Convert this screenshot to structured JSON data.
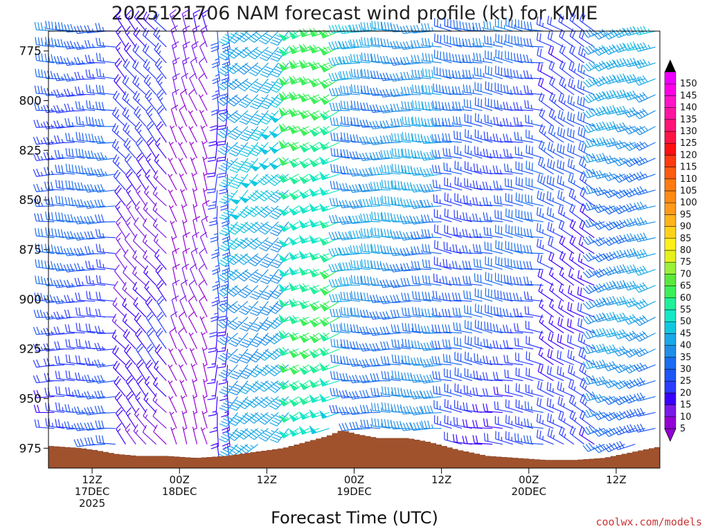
{
  "chart_data": {
    "type": "wind-barb-timeseries",
    "title": "2025121706 NAM forecast wind profile (kt) for KMIE",
    "xlabel": "Forecast Time (UTC)",
    "credit": "coolwx.com/models",
    "y_ticks": [
      775,
      800,
      825,
      850,
      875,
      900,
      925,
      950,
      975
    ],
    "ylim": [
      765,
      985
    ],
    "x_ticks": [
      {
        "hour": 6,
        "lines": [
          "12Z",
          "17DEC",
          "2025"
        ]
      },
      {
        "hour": 18,
        "lines": [
          "00Z",
          "18DEC"
        ]
      },
      {
        "hour": 30,
        "lines": [
          "12Z"
        ]
      },
      {
        "hour": 42,
        "lines": [
          "00Z",
          "19DEC"
        ]
      },
      {
        "hour": 54,
        "lines": [
          "12Z"
        ]
      },
      {
        "hour": 66,
        "lines": [
          "00Z",
          "20DEC"
        ]
      },
      {
        "hour": 78,
        "lines": [
          "12Z"
        ]
      }
    ],
    "xlim": [
      0,
      84
    ],
    "colorbar": {
      "ticks": [
        5,
        10,
        15,
        20,
        25,
        30,
        35,
        40,
        45,
        50,
        55,
        60,
        65,
        70,
        75,
        80,
        85,
        90,
        95,
        100,
        105,
        110,
        115,
        120,
        125,
        130,
        135,
        140,
        145,
        150
      ],
      "colors": [
        "#9300d6",
        "#7a1ae8",
        "#3a00ff",
        "#2a3cff",
        "#1e55f5",
        "#1a6cf0",
        "#1f8ee8",
        "#19a8e8",
        "#11c8e0",
        "#14e8c8",
        "#20f09a",
        "#3cf05a",
        "#5ae83c",
        "#9bf03a",
        "#e6f01a",
        "#fff01a",
        "#ffd21a",
        "#ffb41a",
        "#ff9a1a",
        "#ff8a14",
        "#ff7a10",
        "#ff5a10",
        "#ff3a10",
        "#ff1010",
        "#ff1446",
        "#ff1478",
        "#ff14a0",
        "#ff14c8",
        "#ff00e6",
        "#ee00ff"
      ]
    },
    "terrain_pressure": [
      {
        "hour": 0,
        "p": 974
      },
      {
        "hour": 4,
        "p": 975
      },
      {
        "hour": 6,
        "p": 976
      },
      {
        "hour": 9,
        "p": 978
      },
      {
        "hour": 12,
        "p": 979
      },
      {
        "hour": 16,
        "p": 979
      },
      {
        "hour": 20,
        "p": 980
      },
      {
        "hour": 24,
        "p": 979
      },
      {
        "hour": 28,
        "p": 977
      },
      {
        "hour": 32,
        "p": 975
      },
      {
        "hour": 35,
        "p": 972
      },
      {
        "hour": 38,
        "p": 969
      },
      {
        "hour": 40,
        "p": 966
      },
      {
        "hour": 42,
        "p": 968
      },
      {
        "hour": 45,
        "p": 970
      },
      {
        "hour": 49,
        "p": 970
      },
      {
        "hour": 52,
        "p": 972
      },
      {
        "hour": 56,
        "p": 976
      },
      {
        "hour": 60,
        "p": 979
      },
      {
        "hour": 64,
        "p": 980
      },
      {
        "hour": 68,
        "p": 981
      },
      {
        "hour": 72,
        "p": 981
      },
      {
        "hour": 76,
        "p": 980
      },
      {
        "hour": 80,
        "p": 977
      },
      {
        "hour": 84,
        "p": 974
      }
    ],
    "wind_regimes": [
      {
        "hour_start": 0,
        "hour_end": 10,
        "dir_deg": 270,
        "speed_kt": 30
      },
      {
        "hour_start": 10,
        "hour_end": 17,
        "dir_deg": 320,
        "speed_kt": 20
      },
      {
        "hour_start": 17,
        "hour_end": 22,
        "dir_deg": 340,
        "speed_kt": 10
      },
      {
        "hour_start": 22,
        "hour_end": 25,
        "dir_deg": 180,
        "speed_kt": 25
      },
      {
        "hour_start": 25,
        "hour_end": 34,
        "dir_deg": 225,
        "speed_kt": 45
      },
      {
        "hour_start": 34,
        "hour_end": 41,
        "dir_deg": 245,
        "speed_kt": 60
      },
      {
        "hour_start": 41,
        "hour_end": 55,
        "dir_deg": 270,
        "speed_kt": 40
      },
      {
        "hour_start": 55,
        "hour_end": 68,
        "dir_deg": 280,
        "speed_kt": 30
      },
      {
        "hour_start": 68,
        "hour_end": 76,
        "dir_deg": 300,
        "speed_kt": 25
      },
      {
        "hour_start": 76,
        "hour_end": 84,
        "dir_deg": 250,
        "speed_kt": 40
      }
    ]
  }
}
